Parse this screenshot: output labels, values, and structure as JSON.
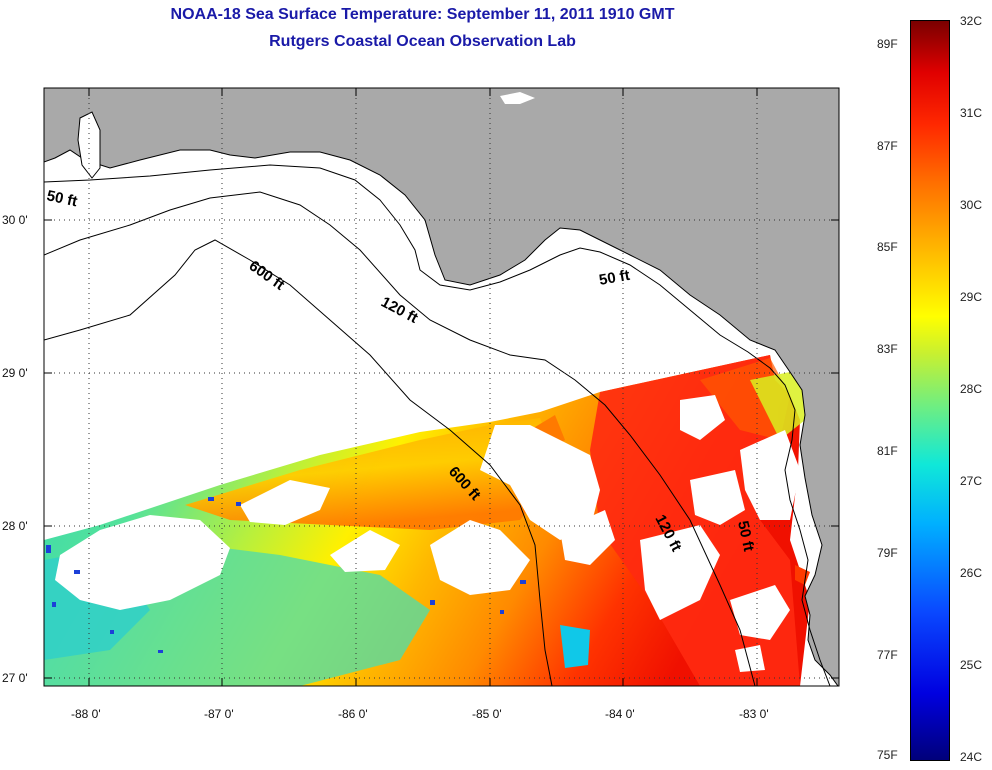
{
  "title": {
    "line1": "NOAA-18 Sea Surface Temperature:  September 11, 2011 1910 GMT",
    "line2": "Rutgers Coastal Ocean Observation Lab"
  },
  "map": {
    "region": "Northeastern Gulf of Mexico / Florida Big Bend",
    "lat_ticks": [
      "30 0'",
      "29 0'",
      "28 0'",
      "27 0'"
    ],
    "lon_ticks": [
      "-88 0'",
      "-87 0'",
      "-86 0'",
      "-85 0'",
      "-84 0'",
      "-83 0'"
    ],
    "isobath_labels": [
      "50 ft",
      "50 ft",
      "50 ft",
      "120 ft",
      "120 ft",
      "600 ft",
      "600 ft"
    ],
    "colors": {
      "land": "#a9a9a9",
      "water_no_data": "#ffffff",
      "contour": "#000000"
    }
  },
  "colorbar": {
    "celsius_labels": [
      "32C",
      "31C",
      "30C",
      "29C",
      "28C",
      "27C",
      "26C",
      "25C",
      "24C"
    ],
    "fahrenheit_labels": [
      "89F",
      "87F",
      "85F",
      "83F",
      "81F",
      "79F",
      "77F",
      "75F"
    ],
    "range_c": [
      24,
      32
    ],
    "range_f": [
      75,
      89.6
    ]
  }
}
